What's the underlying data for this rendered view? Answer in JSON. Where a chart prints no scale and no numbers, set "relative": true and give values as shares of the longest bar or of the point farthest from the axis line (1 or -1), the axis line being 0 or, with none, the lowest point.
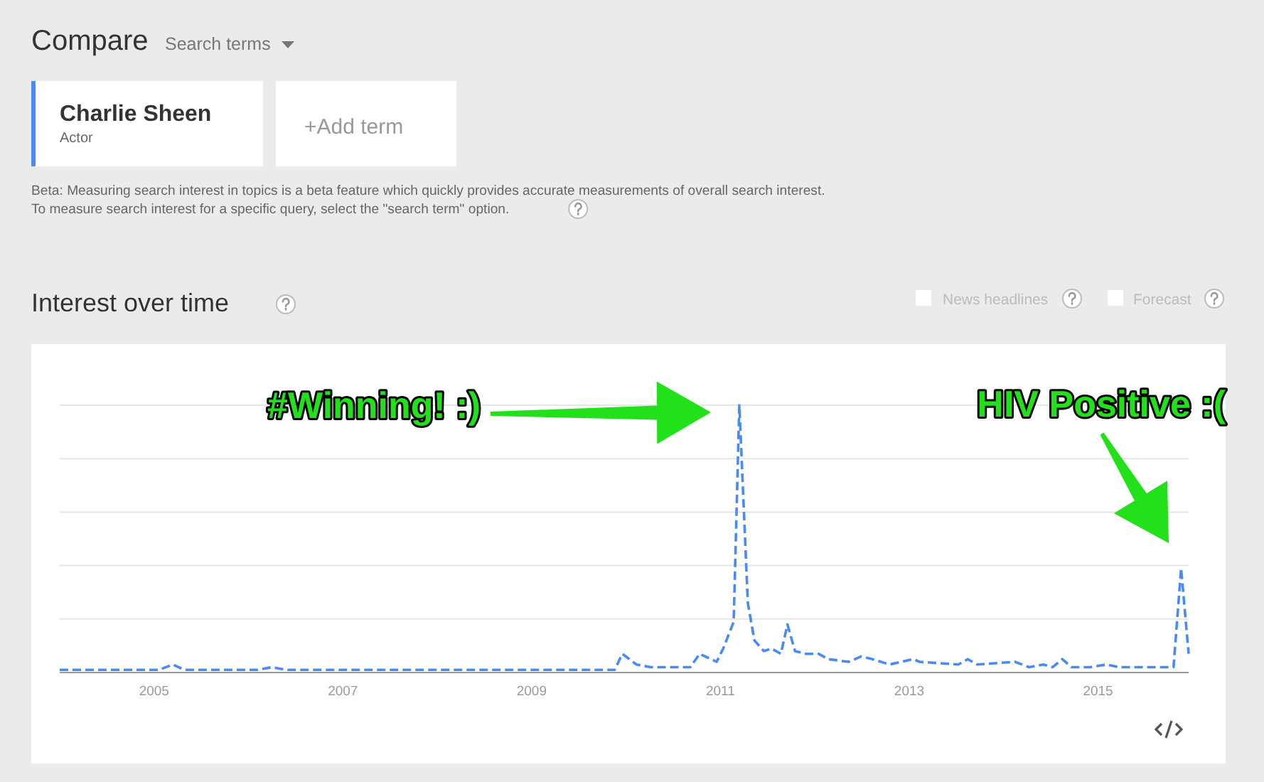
{
  "chart_data": {
    "type": "line",
    "title": "Interest over time",
    "relative": true,
    "grid": "y",
    "line_style": "dashed",
    "marker": "none",
    "xlim": [
      2004,
      2015.96
    ],
    "xticks": [
      2005,
      2007,
      2009,
      2011,
      2013,
      2015
    ],
    "x": [
      2004.0,
      2005.05,
      2005.2,
      2005.32,
      2006.1,
      2006.25,
      2006.4,
      2009.71,
      2009.88,
      2009.96,
      2010.11,
      2010.26,
      2010.35,
      2010.68,
      2010.78,
      2010.96,
      2011.03,
      2011.14,
      2011.2,
      2011.29,
      2011.36,
      2011.46,
      2011.54,
      2011.64,
      2011.71,
      2011.79,
      2011.91,
      2012.04,
      2012.14,
      2012.36,
      2012.49,
      2012.61,
      2012.79,
      2013.04,
      2013.11,
      2013.52,
      2013.62,
      2013.72,
      2014.12,
      2014.27,
      2014.42,
      2014.52,
      2014.62,
      2014.72,
      2014.92,
      2015.09,
      2015.22,
      2015.8,
      2015.88,
      2015.96
    ],
    "series": [
      {
        "color": "#4a8af4",
        "values": [
          0.01,
          0.01,
          0.03,
          0.01,
          0.01,
          0.02,
          0.01,
          0.01,
          0.01,
          0.07,
          0.03,
          0.02,
          0.02,
          0.02,
          0.07,
          0.04,
          0.09,
          0.19,
          1,
          0.26,
          0.12,
          0.08,
          0.09,
          0.07,
          0.18,
          0.08,
          0.07,
          0.07,
          0.05,
          0.04,
          0.06,
          0.05,
          0.03,
          0.05,
          0.04,
          0.03,
          0.05,
          0.03,
          0.04,
          0.02,
          0.03,
          0.02,
          0.05,
          0.02,
          0.02,
          0.03,
          0.02,
          0.02,
          0.39,
          0.07
        ]
      }
    ],
    "annotations": [
      "Compare",
      "Search terms",
      "Charlie Sheen",
      "Actor",
      "+Add term",
      "Beta: Measuring search interest in topics is a beta feature which quickly provides accurate measurements of overall search interest. To measure search interest for a specific query, select the \"search term\" option.",
      "News headlines",
      "Forecast",
      "#Winning! :)",
      "HIV Positive :("
    ]
  }
}
